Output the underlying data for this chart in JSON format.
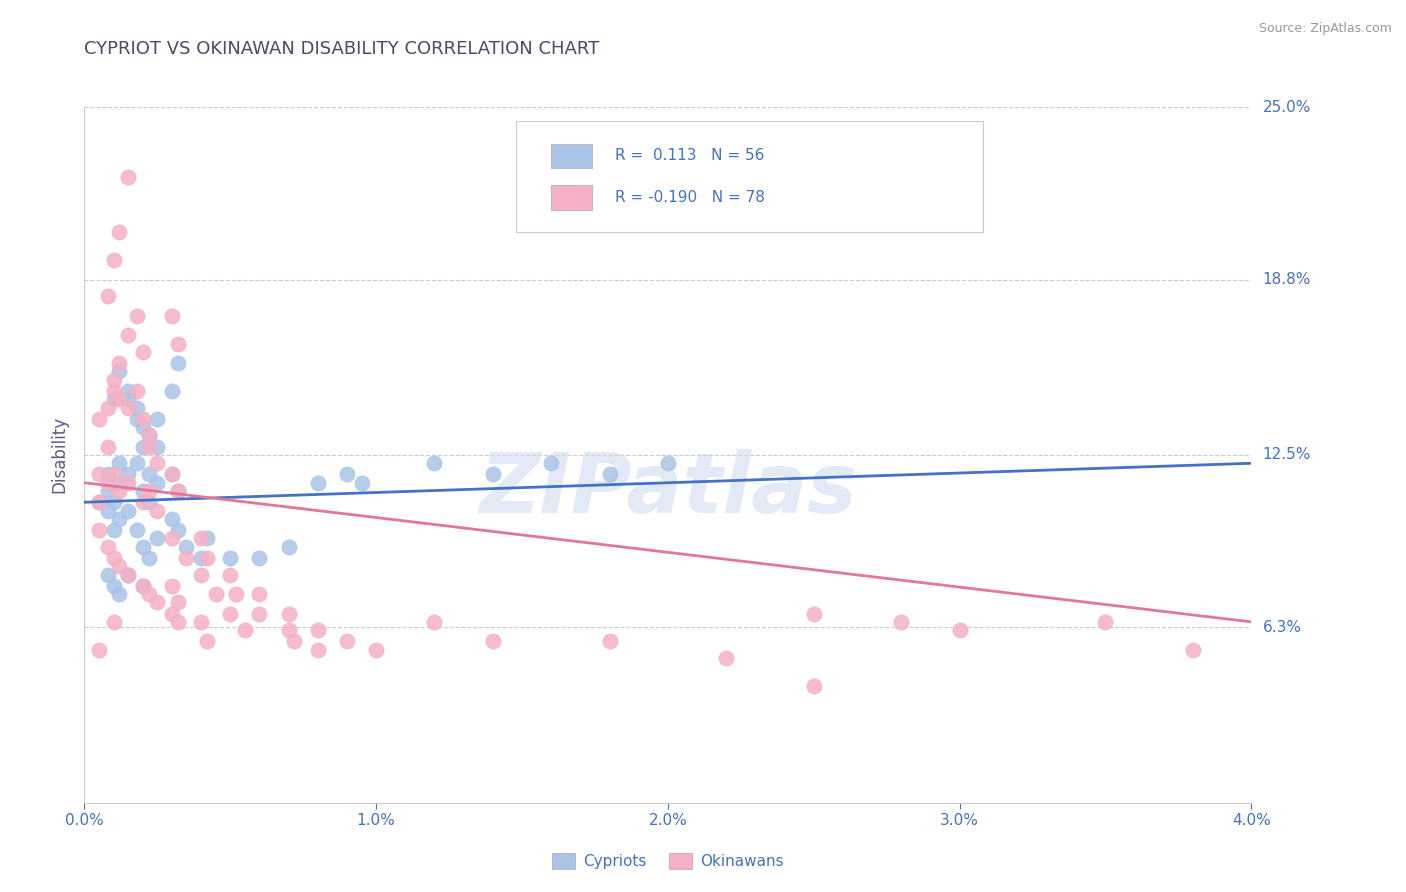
{
  "title": "CYPRIOT VS OKINAWAN DISABILITY CORRELATION CHART",
  "source": "Source: ZipAtlas.com",
  "ylabel": "Disability",
  "watermark": "ZIPatlas",
  "cypriot_R": 0.113,
  "cypriot_N": 56,
  "okinawan_R": -0.19,
  "okinawan_N": 78,
  "cypriot_color": "#aac4e8",
  "okinawan_color": "#f5b0c5",
  "cypriot_line_color": "#4472c4",
  "okinawan_line_color": "#e07898",
  "title_color": "#4a4a6a",
  "axis_label_color": "#5a5a8a",
  "tick_color": "#4472c4",
  "source_color": "#999999",
  "background_color": "#ffffff",
  "grid_color": "#cccccc",
  "xmin": 0.0,
  "xmax": 0.04,
  "ymin": 0.0,
  "ymax": 0.25,
  "ytick_vals": [
    0.063,
    0.125,
    0.188,
    0.25
  ],
  "ytick_labels": [
    "6.3%",
    "12.5%",
    "18.8%",
    "25.0%"
  ],
  "xtick_vals": [
    0.0,
    0.01,
    0.02,
    0.03,
    0.04
  ],
  "xtick_labels": [
    "0.0%",
    "1.0%",
    "2.0%",
    "3.0%",
    "4.0%"
  ],
  "legend_labels": [
    "Cypriots",
    "Okinawans"
  ],
  "cypriot_scatter": [
    [
      0.0008,
      0.118
    ],
    [
      0.0012,
      0.122
    ],
    [
      0.0015,
      0.145
    ],
    [
      0.0018,
      0.138
    ],
    [
      0.002,
      0.135
    ],
    [
      0.0022,
      0.132
    ],
    [
      0.0025,
      0.128
    ],
    [
      0.001,
      0.145
    ],
    [
      0.0012,
      0.155
    ],
    [
      0.0015,
      0.148
    ],
    [
      0.0018,
      0.142
    ],
    [
      0.002,
      0.128
    ],
    [
      0.0022,
      0.118
    ],
    [
      0.0025,
      0.138
    ],
    [
      0.003,
      0.148
    ],
    [
      0.0032,
      0.158
    ],
    [
      0.0008,
      0.112
    ],
    [
      0.001,
      0.108
    ],
    [
      0.0012,
      0.115
    ],
    [
      0.0015,
      0.118
    ],
    [
      0.0018,
      0.122
    ],
    [
      0.002,
      0.112
    ],
    [
      0.0022,
      0.108
    ],
    [
      0.0025,
      0.115
    ],
    [
      0.003,
      0.118
    ],
    [
      0.0032,
      0.112
    ],
    [
      0.0008,
      0.105
    ],
    [
      0.001,
      0.098
    ],
    [
      0.0012,
      0.102
    ],
    [
      0.0015,
      0.105
    ],
    [
      0.0018,
      0.098
    ],
    [
      0.002,
      0.092
    ],
    [
      0.0022,
      0.088
    ],
    [
      0.0025,
      0.095
    ],
    [
      0.003,
      0.102
    ],
    [
      0.0032,
      0.098
    ],
    [
      0.0035,
      0.092
    ],
    [
      0.004,
      0.088
    ],
    [
      0.0042,
      0.095
    ],
    [
      0.005,
      0.088
    ],
    [
      0.006,
      0.088
    ],
    [
      0.007,
      0.092
    ],
    [
      0.008,
      0.115
    ],
    [
      0.009,
      0.118
    ],
    [
      0.0095,
      0.115
    ],
    [
      0.012,
      0.122
    ],
    [
      0.014,
      0.118
    ],
    [
      0.016,
      0.122
    ],
    [
      0.018,
      0.118
    ],
    [
      0.02,
      0.122
    ],
    [
      0.0005,
      0.108
    ],
    [
      0.0008,
      0.082
    ],
    [
      0.001,
      0.078
    ],
    [
      0.0012,
      0.075
    ],
    [
      0.0015,
      0.082
    ],
    [
      0.002,
      0.078
    ]
  ],
  "okinawan_scatter": [
    [
      0.0005,
      0.118
    ],
    [
      0.0008,
      0.128
    ],
    [
      0.001,
      0.148
    ],
    [
      0.0012,
      0.145
    ],
    [
      0.0015,
      0.142
    ],
    [
      0.0018,
      0.148
    ],
    [
      0.002,
      0.138
    ],
    [
      0.0022,
      0.132
    ],
    [
      0.0005,
      0.138
    ],
    [
      0.0008,
      0.142
    ],
    [
      0.001,
      0.152
    ],
    [
      0.0012,
      0.158
    ],
    [
      0.0015,
      0.168
    ],
    [
      0.0018,
      0.175
    ],
    [
      0.002,
      0.162
    ],
    [
      0.0005,
      0.108
    ],
    [
      0.0008,
      0.115
    ],
    [
      0.001,
      0.118
    ],
    [
      0.0012,
      0.112
    ],
    [
      0.0015,
      0.115
    ],
    [
      0.002,
      0.108
    ],
    [
      0.0022,
      0.112
    ],
    [
      0.0025,
      0.105
    ],
    [
      0.001,
      0.195
    ],
    [
      0.0012,
      0.205
    ],
    [
      0.0015,
      0.225
    ],
    [
      0.0008,
      0.182
    ],
    [
      0.003,
      0.175
    ],
    [
      0.0032,
      0.165
    ],
    [
      0.0005,
      0.098
    ],
    [
      0.0008,
      0.092
    ],
    [
      0.001,
      0.088
    ],
    [
      0.0012,
      0.085
    ],
    [
      0.0015,
      0.082
    ],
    [
      0.002,
      0.078
    ],
    [
      0.0022,
      0.075
    ],
    [
      0.0025,
      0.072
    ],
    [
      0.003,
      0.068
    ],
    [
      0.0032,
      0.065
    ],
    [
      0.004,
      0.095
    ],
    [
      0.0042,
      0.088
    ],
    [
      0.005,
      0.082
    ],
    [
      0.0052,
      0.075
    ],
    [
      0.006,
      0.068
    ],
    [
      0.007,
      0.062
    ],
    [
      0.0072,
      0.058
    ],
    [
      0.008,
      0.055
    ],
    [
      0.0022,
      0.128
    ],
    [
      0.0025,
      0.122
    ],
    [
      0.003,
      0.118
    ],
    [
      0.0032,
      0.112
    ],
    [
      0.003,
      0.078
    ],
    [
      0.0032,
      0.072
    ],
    [
      0.004,
      0.065
    ],
    [
      0.0042,
      0.058
    ],
    [
      0.005,
      0.068
    ],
    [
      0.0055,
      0.062
    ],
    [
      0.006,
      0.075
    ],
    [
      0.007,
      0.068
    ],
    [
      0.008,
      0.062
    ],
    [
      0.009,
      0.058
    ],
    [
      0.01,
      0.055
    ],
    [
      0.012,
      0.065
    ],
    [
      0.014,
      0.058
    ],
    [
      0.018,
      0.058
    ],
    [
      0.022,
      0.052
    ],
    [
      0.025,
      0.068
    ],
    [
      0.028,
      0.065
    ],
    [
      0.003,
      0.095
    ],
    [
      0.0035,
      0.088
    ],
    [
      0.004,
      0.082
    ],
    [
      0.0045,
      0.075
    ],
    [
      0.025,
      0.042
    ],
    [
      0.03,
      0.062
    ],
    [
      0.035,
      0.065
    ],
    [
      0.038,
      0.055
    ],
    [
      0.0005,
      0.055
    ],
    [
      0.001,
      0.065
    ]
  ],
  "cypriot_trend_x": [
    0.0,
    0.04
  ],
  "cypriot_trend_y": [
    0.108,
    0.122
  ],
  "okinawan_trend_x": [
    0.0,
    0.04
  ],
  "okinawan_trend_y": [
    0.115,
    0.065
  ]
}
